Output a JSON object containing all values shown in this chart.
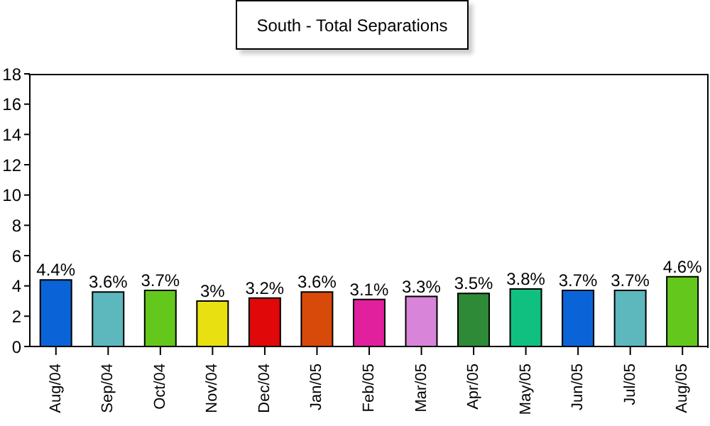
{
  "chart_data": {
    "type": "bar",
    "title": "South - Total Separations",
    "categories": [
      "Aug/04",
      "Sep/04",
      "Oct/04",
      "Nov/04",
      "Dec/04",
      "Jan/05",
      "Feb/05",
      "Mar/05",
      "Apr/05",
      "May/05",
      "Jun/05",
      "Jul/05",
      "Aug/05"
    ],
    "values": [
      4.4,
      3.6,
      3.7,
      3,
      3.2,
      3.6,
      3.1,
      3.3,
      3.5,
      3.8,
      3.7,
      3.7,
      4.6
    ],
    "value_labels": [
      "4.4%",
      "3.6%",
      "3.7%",
      "3%",
      "3.2%",
      "3.6%",
      "3.1%",
      "3.3%",
      "3.5%",
      "3.8%",
      "3.7%",
      "3.7%",
      "4.6%"
    ],
    "colors": [
      "#0a64d8",
      "#5cb8bc",
      "#64c81c",
      "#e8e010",
      "#e00808",
      "#d84a0a",
      "#e0209c",
      "#d884d8",
      "#2e8a36",
      "#10c080",
      "#0a64d8",
      "#5cb8bc",
      "#64c81c"
    ],
    "ylim": [
      0,
      18
    ],
    "yticks": [
      0,
      2,
      4,
      6,
      8,
      10,
      12,
      14,
      16,
      18
    ],
    "grid": false,
    "legend": false
  }
}
